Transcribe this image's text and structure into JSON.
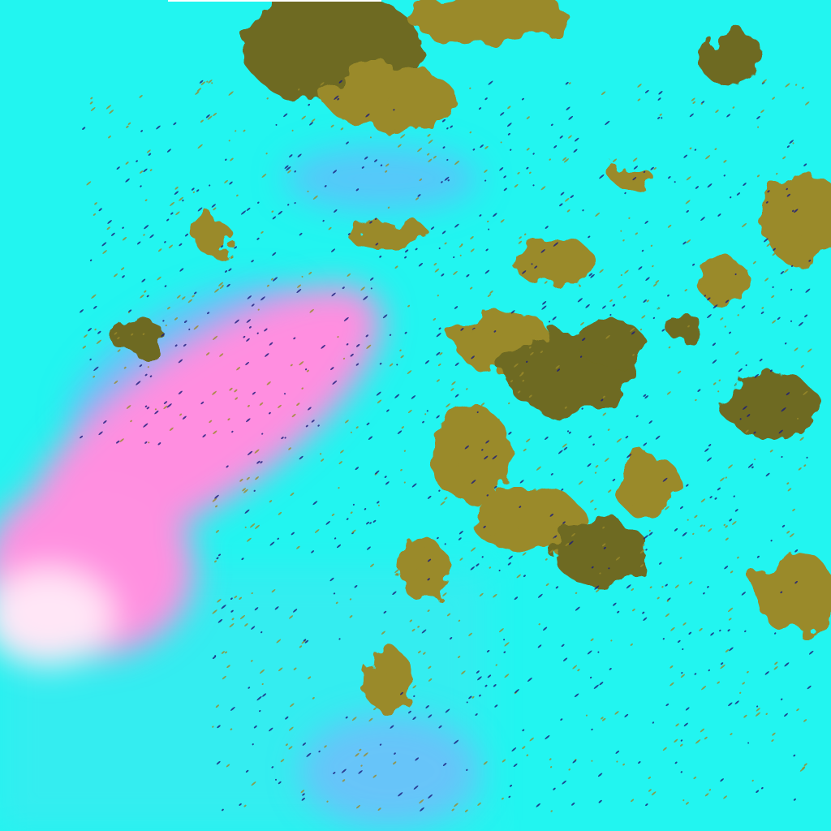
{
  "image": {
    "kind": "false-color satellite imagery",
    "colors": {
      "background_cyan": "#22f5f0",
      "land_olive": "#9a8a2a",
      "land_dark": "#6e6a20",
      "pink_cloud": "#ff88dd",
      "blue_haze": "#7aa8ff",
      "white_cloud": "#f0ffff",
      "speckle_navy": "#1a1a7a"
    }
  }
}
